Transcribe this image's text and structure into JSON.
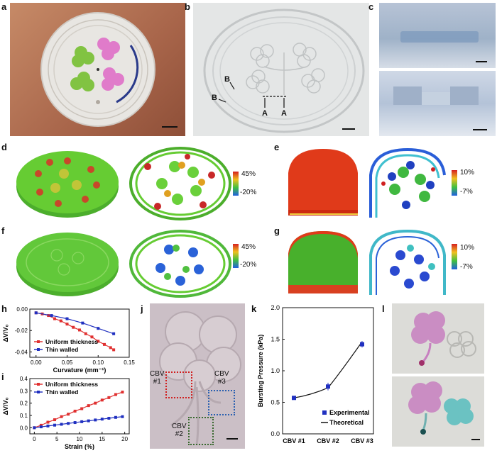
{
  "panels": {
    "a": "a",
    "b": "b",
    "c": "c",
    "d": "d",
    "e": "e",
    "f": "f",
    "g": "g",
    "h": "h",
    "i": "i",
    "j": "j",
    "k": "k",
    "l": "l"
  },
  "panel_b_markers": [
    "B",
    "B",
    "A",
    "A"
  ],
  "colorbars": {
    "d": {
      "max": "45%",
      "min": "-20%"
    },
    "e": {
      "max": "10%",
      "min": "-7%"
    },
    "f": {
      "max": "45%",
      "min": "-20%"
    },
    "g": {
      "max": "10%",
      "min": "-7%"
    }
  },
  "panel_j": {
    "cbv1": [
      "CBV",
      "#1"
    ],
    "cbv2": [
      "CBV",
      "#2"
    ],
    "cbv3": [
      "CBV",
      "#3"
    ]
  },
  "chart_data": [
    {
      "id": "h",
      "type": "line",
      "xlabel": "Curvature (mm⁻¹)",
      "ylabel": "ΔV/V₀",
      "xlim": [
        -0.01,
        0.15
      ],
      "ylim": [
        -0.045,
        0.0
      ],
      "xticks": [
        "0.00",
        "0.05",
        "0.10",
        "0.15"
      ],
      "yticks": [
        "0.00",
        "-0.02",
        "-0.04"
      ],
      "legend": "bottom-left",
      "series": [
        {
          "name": "Uniform thickness",
          "color": "#e03030",
          "x": [
            0.0,
            0.01,
            0.02,
            0.03,
            0.04,
            0.05,
            0.06,
            0.07,
            0.08,
            0.09,
            0.1,
            0.11,
            0.12,
            0.125
          ],
          "y": [
            -0.0035,
            -0.0045,
            -0.006,
            -0.009,
            -0.011,
            -0.014,
            -0.017,
            -0.0195,
            -0.023,
            -0.026,
            -0.03,
            -0.033,
            -0.036,
            -0.038
          ]
        },
        {
          "name": "Thin walled",
          "color": "#2030c0",
          "x": [
            0.0,
            0.025,
            0.05,
            0.075,
            0.1,
            0.125
          ],
          "y": [
            -0.0035,
            -0.006,
            -0.009,
            -0.013,
            -0.018,
            -0.023
          ]
        }
      ]
    },
    {
      "id": "i",
      "type": "line",
      "xlabel": "Strain (%)",
      "ylabel": "ΔV/V₀",
      "xlim": [
        -1,
        21
      ],
      "ylim": [
        -0.05,
        0.4
      ],
      "xticks": [
        "0",
        "5",
        "10",
        "15",
        "20"
      ],
      "yticks": [
        "0.0",
        "0.1",
        "0.2",
        "0.3",
        "0.4"
      ],
      "legend": "top-left",
      "series": [
        {
          "name": "Uniform thickness",
          "color": "#e03030",
          "x": [
            0,
            1.5,
            3,
            4.5,
            6,
            7.5,
            9,
            10.5,
            12,
            13.5,
            15,
            16.5,
            18,
            19.5
          ],
          "y": [
            0.0,
            0.02,
            0.045,
            0.065,
            0.09,
            0.11,
            0.135,
            0.155,
            0.18,
            0.2,
            0.225,
            0.245,
            0.27,
            0.29
          ]
        },
        {
          "name": "Thin walled",
          "color": "#2030c0",
          "x": [
            0,
            1.5,
            3,
            4.5,
            6,
            7.5,
            9,
            10.5,
            12,
            13.5,
            15,
            16.5,
            18,
            19.5
          ],
          "y": [
            0.0,
            0.007,
            0.014,
            0.021,
            0.028,
            0.035,
            0.042,
            0.049,
            0.056,
            0.063,
            0.07,
            0.077,
            0.084,
            0.09
          ]
        }
      ]
    },
    {
      "id": "k",
      "type": "scatter",
      "xlabel": "",
      "ylabel": "Bursting Pressure (kPa)",
      "categories": [
        "CBV #1",
        "CBV #2",
        "CBV #3"
      ],
      "ylim": [
        0.0,
        2.0
      ],
      "yticks": [
        "0.0",
        "0.5",
        "1.0",
        "1.5",
        "2.0"
      ],
      "legend": "bottom-right",
      "series": [
        {
          "name": "Experimental",
          "color": "#2030c0",
          "values": [
            0.57,
            0.75,
            1.42
          ],
          "err": [
            0.02,
            0.06,
            0.05
          ]
        },
        {
          "name": "Theoretical",
          "color": "#111111",
          "values": [
            0.57,
            0.73,
            1.46
          ]
        }
      ]
    }
  ]
}
